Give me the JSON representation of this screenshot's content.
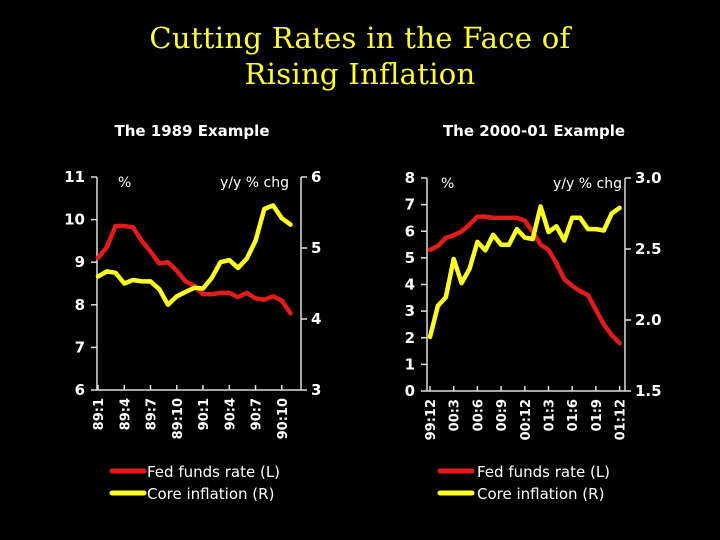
{
  "title": {
    "line1": "Cutting Rates in the Face of",
    "line2": "Rising Inflation"
  },
  "colors": {
    "fed_funds": "#e21b1b",
    "core_inflation": "#ffff22",
    "text": "#ffffff",
    "title": "#ffff33",
    "background": "#000000"
  },
  "chart_data": [
    {
      "type": "line",
      "title": "The 1989 Example",
      "left_unit_label": "%",
      "right_unit_label": "y/y % chg",
      "x_tick_labels": [
        "89:1",
        "89:4",
        "89:7",
        "89:10",
        "90:1",
        "90:4",
        "90:7",
        "90:10"
      ],
      "x_months": 23,
      "left_ylim": [
        6,
        11
      ],
      "left_ticks": [
        "6",
        "7",
        "8",
        "9",
        "10",
        "11"
      ],
      "right_ylim": [
        3,
        6
      ],
      "right_ticks": [
        "3",
        "4",
        "5",
        "6"
      ],
      "grid": false,
      "legend_position": "bottom",
      "series": [
        {
          "name": "Fed funds rate (L)",
          "axis": "left",
          "color_key": "fed_funds",
          "values": [
            9.1,
            9.35,
            9.85,
            9.85,
            9.82,
            9.5,
            9.25,
            8.97,
            9.0,
            8.8,
            8.55,
            8.45,
            8.25,
            8.25,
            8.28,
            8.28,
            8.18,
            8.28,
            8.15,
            8.12,
            8.2,
            8.1,
            7.8
          ]
        },
        {
          "name": "Core inflation (R)",
          "axis": "right",
          "color_key": "core_inflation",
          "values": [
            4.6,
            4.67,
            4.65,
            4.5,
            4.55,
            4.53,
            4.53,
            4.42,
            4.2,
            4.32,
            4.38,
            4.44,
            4.43,
            4.58,
            4.8,
            4.83,
            4.72,
            4.85,
            5.1,
            5.55,
            5.6,
            5.42,
            5.33
          ]
        }
      ]
    },
    {
      "type": "line",
      "title": "The 2000-01 Example",
      "left_unit_label": "%",
      "right_unit_label": "y/y % chg",
      "x_tick_labels": [
        "99:12",
        "00:3",
        "00:6",
        "00:9",
        "00:12",
        "01:3",
        "01:6",
        "01:9",
        "01:12"
      ],
      "x_months": 25,
      "left_ylim": [
        0,
        8
      ],
      "left_ticks": [
        "0",
        "1",
        "2",
        "3",
        "4",
        "5",
        "6",
        "7",
        "8"
      ],
      "right_ylim": [
        1.5,
        3.0
      ],
      "right_ticks": [
        "1.5",
        "2.0",
        "2.5",
        "3.0"
      ],
      "grid": false,
      "legend_position": "bottom",
      "series": [
        {
          "name": "Fed funds rate (L)",
          "axis": "left",
          "color_key": "fed_funds",
          "values": [
            5.3,
            5.45,
            5.75,
            5.85,
            6.0,
            6.25,
            6.55,
            6.55,
            6.5,
            6.5,
            6.5,
            6.5,
            6.4,
            5.98,
            5.5,
            5.3,
            4.8,
            4.2,
            3.95,
            3.75,
            3.6,
            3.05,
            2.5,
            2.1,
            1.8
          ]
        },
        {
          "name": "Core inflation (R)",
          "axis": "right",
          "color_key": "core_inflation",
          "values": [
            1.88,
            2.1,
            2.16,
            2.43,
            2.26,
            2.36,
            2.55,
            2.49,
            2.6,
            2.53,
            2.53,
            2.64,
            2.58,
            2.57,
            2.8,
            2.62,
            2.66,
            2.56,
            2.72,
            2.72,
            2.64,
            2.64,
            2.63,
            2.75,
            2.79
          ]
        }
      ]
    }
  ]
}
